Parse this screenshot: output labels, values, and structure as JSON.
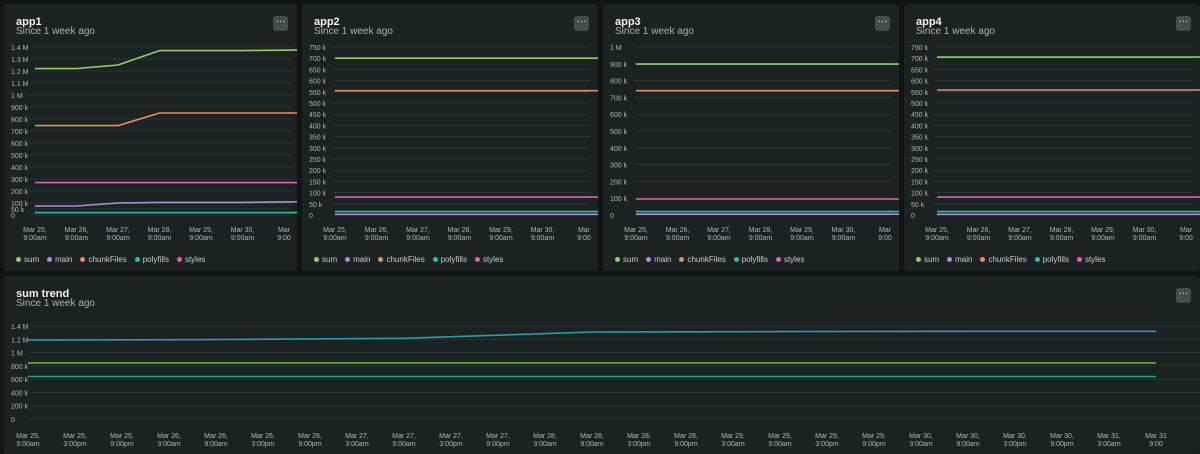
{
  "menu_glyph": "···",
  "colors": {
    "sum": "#8ed068",
    "main": "#b28bdb",
    "chunkFiles": "#ec8b5e",
    "polyfills": "#2bbfad",
    "styles": "#e25fb3",
    "trend_high": "#2a9bb0",
    "trend_mid": "#6aa84f",
    "trend_low": "#21a38b"
  },
  "legend": [
    {
      "key": "sum",
      "label": "sum"
    },
    {
      "key": "main",
      "label": "main"
    },
    {
      "key": "chunkFiles",
      "label": "chunkFiles"
    },
    {
      "key": "polyfills",
      "label": "polyfills"
    },
    {
      "key": "styles",
      "label": "styles"
    }
  ],
  "panels": [
    {
      "title": "app1",
      "subtitle": "Since 1 week ago"
    },
    {
      "title": "app2",
      "subtitle": "Since 1 week ago"
    },
    {
      "title": "app3",
      "subtitle": "Since 1 week ago"
    },
    {
      "title": "app4",
      "subtitle": "Since 1 week ago"
    },
    {
      "title": "sum trend",
      "subtitle": "Since 1 week ago"
    }
  ],
  "chart_data": [
    {
      "type": "line",
      "title": "app1",
      "ylim": [
        0,
        1400000
      ],
      "y_ticks": [
        "0",
        "50 k",
        "100 k",
        "200 k",
        "300 k",
        "400 k",
        "500 k",
        "600 k",
        "700 k",
        "800 k",
        "900 k",
        "1 M",
        "1.1 M",
        "1.2 M",
        "1.3 M",
        "1.4 M"
      ],
      "x_ticks": [
        "Mar 25,\n9:00am",
        "Mar 26,\n9:00am",
        "Mar 27,\n9:00am",
        "Mar 28,\n9:00am",
        "Mar 29,\n9:00am",
        "Mar 30,\n9:00am",
        "Mar\n9:00"
      ],
      "series": [
        {
          "name": "sum",
          "x": [
            0,
            1,
            2,
            3,
            4,
            5,
            6.4
          ],
          "values": [
            1220000,
            1220000,
            1250000,
            1370000,
            1370000,
            1370000,
            1375000
          ]
        },
        {
          "name": "chunkFiles",
          "x": [
            0,
            1,
            2,
            3,
            4,
            5,
            6.4
          ],
          "values": [
            745000,
            745000,
            745000,
            850000,
            850000,
            850000,
            850000
          ]
        },
        {
          "name": "styles",
          "x": [
            0,
            6.4
          ],
          "values": [
            270000,
            270000
          ]
        },
        {
          "name": "main",
          "x": [
            0,
            1,
            2,
            3,
            4,
            5,
            6.4
          ],
          "values": [
            75000,
            75000,
            100000,
            105000,
            105000,
            105000,
            110000
          ]
        },
        {
          "name": "polyfills",
          "x": [
            0,
            6.4
          ],
          "values": [
            20000,
            20000
          ]
        }
      ]
    },
    {
      "type": "line",
      "title": "app2",
      "ylim": [
        0,
        750000
      ],
      "y_ticks": [
        "0",
        "50 k",
        "100 k",
        "150 k",
        "200 k",
        "250 k",
        "300 k",
        "350 k",
        "400 k",
        "450 k",
        "500 k",
        "550 k",
        "600 k",
        "650 k",
        "700 k",
        "750 k"
      ],
      "x_ticks": [
        "Mar 25,\n9:00am",
        "Mar 26,\n9:00am",
        "Mar 27,\n9:00am",
        "Mar 28,\n9:00am",
        "Mar 29,\n9:00am",
        "Mar 30,\n9:00am",
        "Mar\n9:00"
      ],
      "series": [
        {
          "name": "sum",
          "x": [
            0,
            6.4
          ],
          "values": [
            700000,
            700000
          ]
        },
        {
          "name": "chunkFiles",
          "x": [
            0,
            6.4
          ],
          "values": [
            555000,
            555000
          ]
        },
        {
          "name": "styles",
          "x": [
            0,
            6.4
          ],
          "values": [
            80000,
            80000
          ]
        },
        {
          "name": "polyfills",
          "x": [
            0,
            6.4
          ],
          "values": [
            15000,
            15000
          ]
        },
        {
          "name": "main",
          "x": [
            0,
            6.4
          ],
          "values": [
            3000,
            3000
          ]
        }
      ]
    },
    {
      "type": "line",
      "title": "app3",
      "ylim": [
        0,
        1000000
      ],
      "y_ticks": [
        "0",
        "100 k",
        "200 k",
        "300 k",
        "400 k",
        "500 k",
        "600 k",
        "700 k",
        "800 k",
        "900 k",
        "1 M"
      ],
      "x_ticks": [
        "Mar 25,\n9:00am",
        "Mar 26,\n9:00am",
        "Mar 27,\n9:00am",
        "Mar 28,\n9:00am",
        "Mar 29,\n9:00am",
        "Mar 30,\n9:00am",
        "Mar\n9:00"
      ],
      "series": [
        {
          "name": "sum",
          "x": [
            0,
            6.4
          ],
          "values": [
            898000,
            898000
          ]
        },
        {
          "name": "chunkFiles",
          "x": [
            0,
            6.4
          ],
          "values": [
            740000,
            740000
          ]
        },
        {
          "name": "styles",
          "x": [
            0,
            6.4
          ],
          "values": [
            95000,
            95000
          ]
        },
        {
          "name": "polyfills",
          "x": [
            0,
            6.4
          ],
          "values": [
            20000,
            20000
          ]
        },
        {
          "name": "main",
          "x": [
            0,
            6.4
          ],
          "values": [
            5000,
            5000
          ]
        }
      ]
    },
    {
      "type": "line",
      "title": "app4",
      "ylim": [
        0,
        750000
      ],
      "y_ticks": [
        "0",
        "50 k",
        "100 k",
        "150 k",
        "200 k",
        "250 k",
        "300 k",
        "350 k",
        "400 k",
        "450 k",
        "500 k",
        "550 k",
        "600 k",
        "650 k",
        "700 k",
        "750 k"
      ],
      "x_ticks": [
        "Mar 25,\n9:00am",
        "Mar 26,\n9:00am",
        "Mar 27,\n9:00am",
        "Mar 28,\n9:00am",
        "Mar 29,\n9:00am",
        "Mar 30,\n9:00am",
        "Mar\n9:00"
      ],
      "series": [
        {
          "name": "sum",
          "x": [
            0,
            6.4
          ],
          "values": [
            705000,
            705000
          ]
        },
        {
          "name": "chunkFiles",
          "x": [
            0,
            6.4
          ],
          "values": [
            558000,
            558000
          ]
        },
        {
          "name": "styles",
          "x": [
            0,
            6.4
          ],
          "values": [
            80000,
            80000
          ]
        },
        {
          "name": "polyfills",
          "x": [
            0,
            6.4
          ],
          "values": [
            15000,
            15000
          ]
        },
        {
          "name": "main",
          "x": [
            0,
            6.4
          ],
          "values": [
            3000,
            3000
          ]
        }
      ]
    },
    {
      "type": "line",
      "title": "sum trend",
      "ylim": [
        0,
        1400000
      ],
      "y_ticks": [
        "0",
        "200 k",
        "400 k",
        "600 k",
        "800 k",
        "1 M",
        "1.2 M",
        "1.4 M"
      ],
      "x_ticks": [
        "Mar 25,\n9:00am",
        "Mar 25,\n3:00pm",
        "Mar 25,\n9:00pm",
        "Mar 26,\n3:00am",
        "Mar 26,\n9:00am",
        "Mar 26,\n3:00pm",
        "Mar 26,\n9:00pm",
        "Mar 27,\n3:00am",
        "Mar 27,\n9:00am",
        "Mar 27,\n3:00pm",
        "Mar 27,\n9:00pm",
        "Mar 28,\n3:00am",
        "Mar 28,\n9:00am",
        "Mar 28,\n3:00pm",
        "Mar 28,\n9:00pm",
        "Mar 29,\n3:00am",
        "Mar 29,\n9:00am",
        "Mar 29,\n3:00pm",
        "Mar 29,\n9:00pm",
        "Mar 30,\n3:00am",
        "Mar 30,\n9:00am",
        "Mar 30,\n3:00pm",
        "Mar 30,\n9:00pm",
        "Mar 31,\n3:00am",
        "Mar 31\n9:00"
      ],
      "series": [
        {
          "colorKey": "trend_high",
          "x": [
            0,
            4,
            8,
            12,
            16,
            20,
            24
          ],
          "values": [
            1190000,
            1195000,
            1215000,
            1310000,
            1315000,
            1320000,
            1320000
          ]
        },
        {
          "colorKey": "trend_mid",
          "x": [
            0,
            24
          ],
          "values": [
            845000,
            845000
          ]
        },
        {
          "colorKey": "trend_low",
          "x": [
            0,
            24
          ],
          "values": [
            640000,
            640000
          ]
        }
      ]
    }
  ]
}
